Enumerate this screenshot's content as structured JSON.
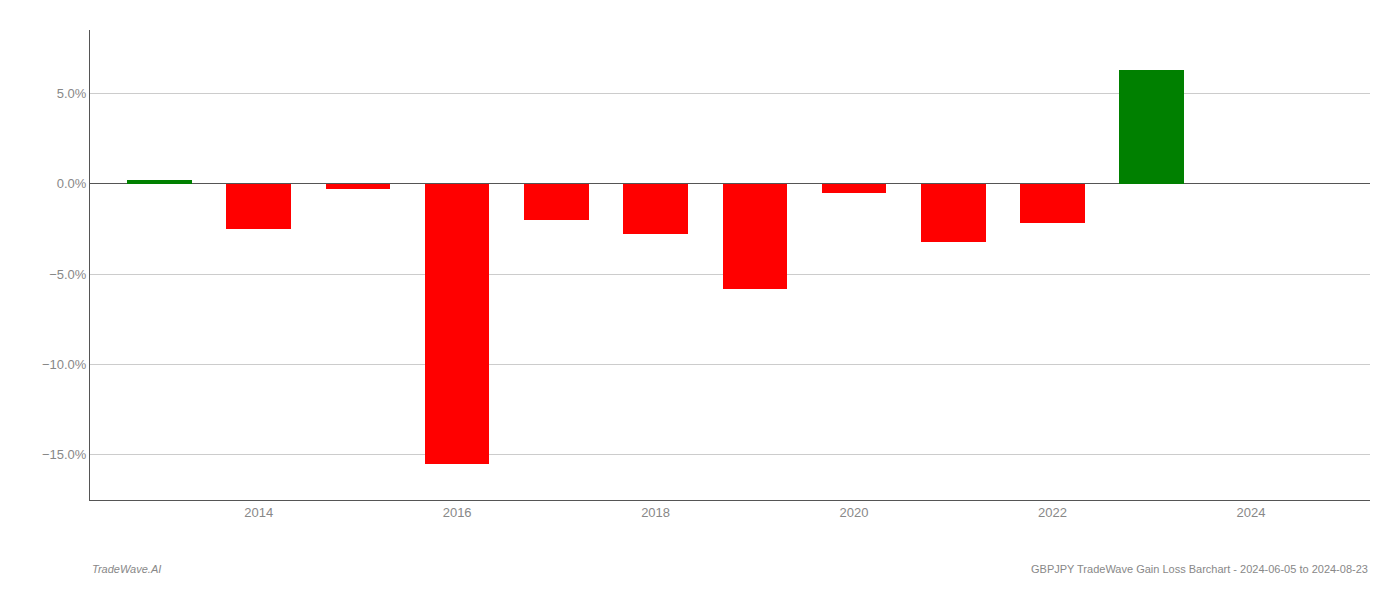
{
  "chart_data": {
    "type": "bar",
    "x": [
      2013,
      2014,
      2015,
      2016,
      2017,
      2018,
      2019,
      2020,
      2021,
      2022,
      2023
    ],
    "values": [
      0.18,
      -2.5,
      -0.3,
      -15.5,
      -2.0,
      -2.8,
      -5.8,
      -0.5,
      -3.2,
      -2.2,
      6.3
    ],
    "colors": [
      "#008000",
      "#ff0000",
      "#ff0000",
      "#ff0000",
      "#ff0000",
      "#ff0000",
      "#ff0000",
      "#ff0000",
      "#ff0000",
      "#ff0000",
      "#008000"
    ],
    "ylim": [
      -17.5,
      8.5
    ],
    "yticks": [
      {
        "value": 5.0,
        "label": "5.0%"
      },
      {
        "value": 0.0,
        "label": "0.0%"
      },
      {
        "value": -5.0,
        "label": "−5.0%"
      },
      {
        "value": -10.0,
        "label": "−10.0%"
      },
      {
        "value": -15.0,
        "label": "−15.0%"
      }
    ],
    "xlim": [
      2012.3,
      2025.2
    ],
    "xticks": [
      2014,
      2016,
      2018,
      2020,
      2022,
      2024
    ],
    "grid": true,
    "annotations": [
      "TradeWave.AI",
      "GBPJPY TradeWave Gain Loss Barchart - 2024-06-05 to 2024-08-23"
    ]
  }
}
